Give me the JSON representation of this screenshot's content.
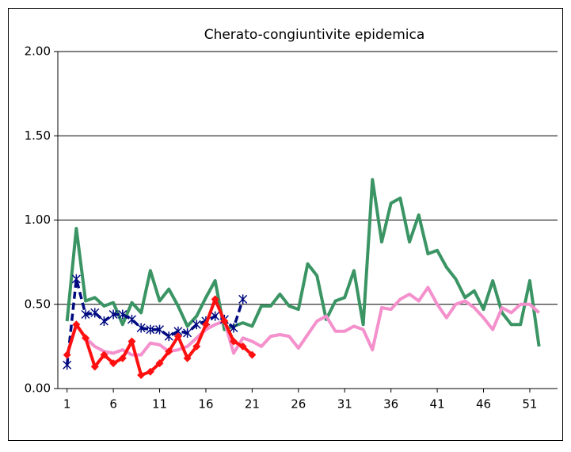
{
  "chart_data": {
    "type": "line",
    "title": "Cherato-congiuntivite  epidemica",
    "x": [
      1,
      2,
      3,
      4,
      5,
      6,
      7,
      8,
      9,
      10,
      11,
      12,
      13,
      14,
      15,
      16,
      17,
      18,
      19,
      20,
      21,
      22,
      23,
      24,
      25,
      26,
      27,
      28,
      29,
      30,
      31,
      32,
      33,
      34,
      35,
      36,
      37,
      38,
      39,
      40,
      41,
      42,
      43,
      44,
      45,
      46,
      47,
      48,
      49,
      50,
      51,
      52
    ],
    "xlim": [
      0,
      54
    ],
    "xticks": [
      1,
      6,
      11,
      16,
      21,
      26,
      31,
      36,
      41,
      46,
      51
    ],
    "ylim": [
      0,
      2
    ],
    "yticks": [
      {
        "value": 0,
        "label": "0.00"
      },
      {
        "value": 0.5,
        "label": "0.50"
      },
      {
        "value": 1,
        "label": "1.00"
      },
      {
        "value": 1.5,
        "label": "1.50"
      },
      {
        "value": 2,
        "label": "2.00"
      }
    ],
    "grid": true,
    "series": [
      {
        "color": "#3a9463",
        "marker": "none",
        "dashed": false,
        "values": [
          0.4,
          0.95,
          0.52,
          0.54,
          0.49,
          0.51,
          0.38,
          0.51,
          0.45,
          0.7,
          0.52,
          0.59,
          0.49,
          0.37,
          0.43,
          0.54,
          0.64,
          0.35,
          0.37,
          0.39,
          0.37,
          0.49,
          0.49,
          0.56,
          0.49,
          0.47,
          0.74,
          0.67,
          0.41,
          0.52,
          0.54,
          0.7,
          0.38,
          1.24,
          0.87,
          1.1,
          1.13,
          0.87,
          1.03,
          0.8,
          0.82,
          0.72,
          0.65,
          0.54,
          0.58,
          0.47,
          0.64,
          0.45,
          0.38,
          0.38,
          0.64,
          0.25
        ]
      },
      {
        "color": "#f490cc",
        "marker": "none",
        "dashed": false,
        "values": [
          0.2,
          0.38,
          0.3,
          0.25,
          0.22,
          0.21,
          0.23,
          0.2,
          0.2,
          0.27,
          0.26,
          0.22,
          0.23,
          0.25,
          0.3,
          0.35,
          0.38,
          0.4,
          0.21,
          0.3,
          0.28,
          0.25,
          0.31,
          0.32,
          0.31,
          0.24,
          0.32,
          0.4,
          0.43,
          0.34,
          0.34,
          0.37,
          0.35,
          0.23,
          0.48,
          0.47,
          0.53,
          0.56,
          0.52,
          0.6,
          0.5,
          0.42,
          0.5,
          0.52,
          0.48,
          0.42,
          0.35,
          0.48,
          0.45,
          0.5,
          0.5,
          0.45
        ]
      },
      {
        "color": "#000a80",
        "marker": "asterisk",
        "dashed": true,
        "values": [
          0.14,
          0.65,
          0.44,
          0.45,
          0.4,
          0.44,
          0.44,
          0.41,
          0.36,
          0.35,
          0.35,
          0.31,
          0.34,
          0.33,
          0.38,
          0.4,
          0.43,
          0.41,
          0.36,
          0.53,
          null,
          null,
          null,
          null,
          null,
          null,
          null,
          null,
          null,
          null,
          null,
          null,
          null,
          null,
          null,
          null,
          null,
          null,
          null,
          null,
          null,
          null,
          null,
          null,
          null,
          null,
          null,
          null,
          null,
          null,
          null,
          null
        ]
      },
      {
        "color": "#ff1010",
        "marker": "diamond",
        "dashed": false,
        "values": [
          0.2,
          0.38,
          0.3,
          0.13,
          0.2,
          0.15,
          0.18,
          0.28,
          0.08,
          0.1,
          0.15,
          0.22,
          0.31,
          0.18,
          0.25,
          0.38,
          0.53,
          0.4,
          0.28,
          0.25,
          0.2,
          null,
          null,
          null,
          null,
          null,
          null,
          null,
          null,
          null,
          null,
          null,
          null,
          null,
          null,
          null,
          null,
          null,
          null,
          null,
          null,
          null,
          null,
          null,
          null,
          null,
          null,
          null,
          null,
          null,
          null,
          null
        ]
      }
    ]
  }
}
